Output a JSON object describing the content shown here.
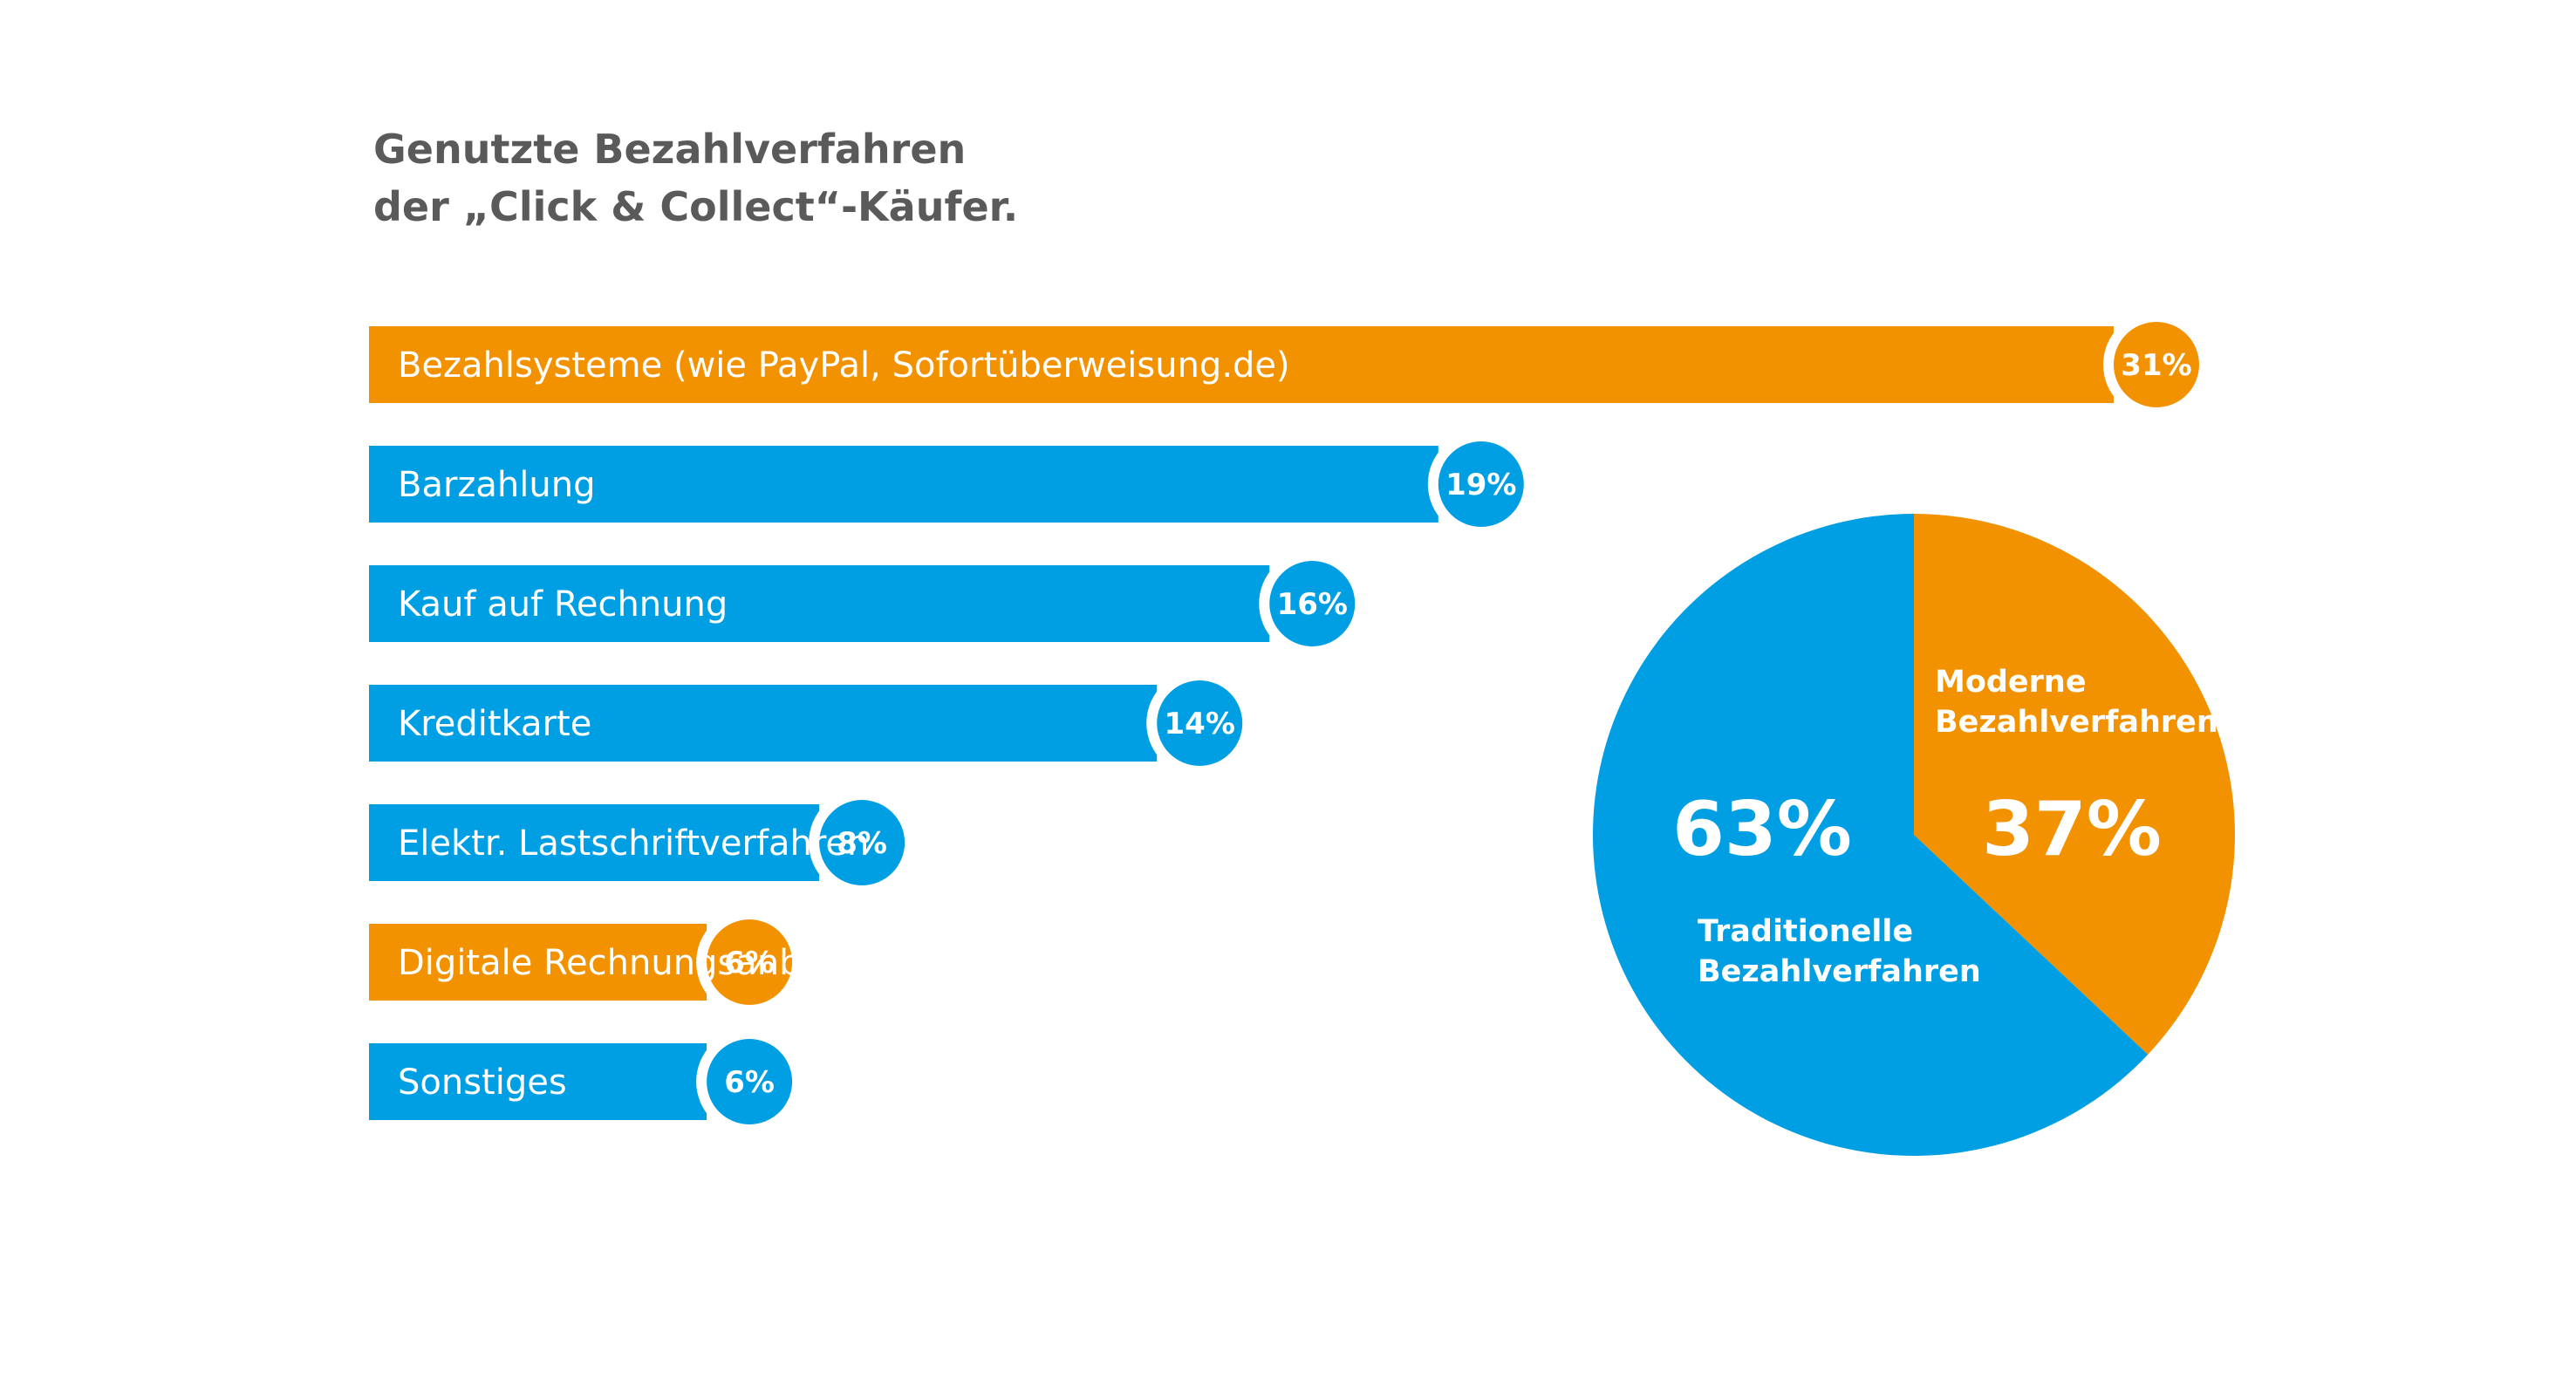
{
  "title": {
    "line1": "Genutzte Bezahlverfahren",
    "line2": "der „Click & Collect“-Käufer."
  },
  "colors": {
    "orange": "#f39200",
    "blue": "#009fe3",
    "title": "#5a5a5a"
  },
  "chart_data": [
    {
      "type": "bar",
      "orientation": "horizontal",
      "title": "Genutzte Bezahlverfahren der „Click & Collect“-Käufer.",
      "categories": [
        "Bezahlsysteme (wie PayPal, Sofortüberweisung.de)",
        "Barzahlung",
        "Kauf auf Rechnung",
        "Kreditkarte",
        "Elektr. Lastschriftverfahren",
        "Digitale Rechnungsanbieter",
        "Sonstiges"
      ],
      "values": [
        31,
        19,
        16,
        14,
        8,
        6,
        6
      ],
      "value_labels": [
        "31%",
        "19%",
        "16%",
        "14%",
        "8%",
        "6%",
        "6%"
      ],
      "bar_colors": [
        "orange",
        "blue",
        "blue",
        "blue",
        "blue",
        "orange",
        "blue"
      ],
      "unit": "%"
    },
    {
      "type": "pie",
      "slices": [
        {
          "name": "Moderne Bezahlverfahren",
          "name_lines": [
            "Moderne",
            "Bezahlverfahren"
          ],
          "value": 37,
          "label": "37%",
          "color": "orange"
        },
        {
          "name": "Traditionelle Bezahlverfahren",
          "name_lines": [
            "Traditionelle",
            "Bezahlverfahren"
          ],
          "value": 63,
          "label": "63%",
          "color": "blue"
        }
      ],
      "start_angle": "top",
      "direction": "clockwise"
    }
  ]
}
